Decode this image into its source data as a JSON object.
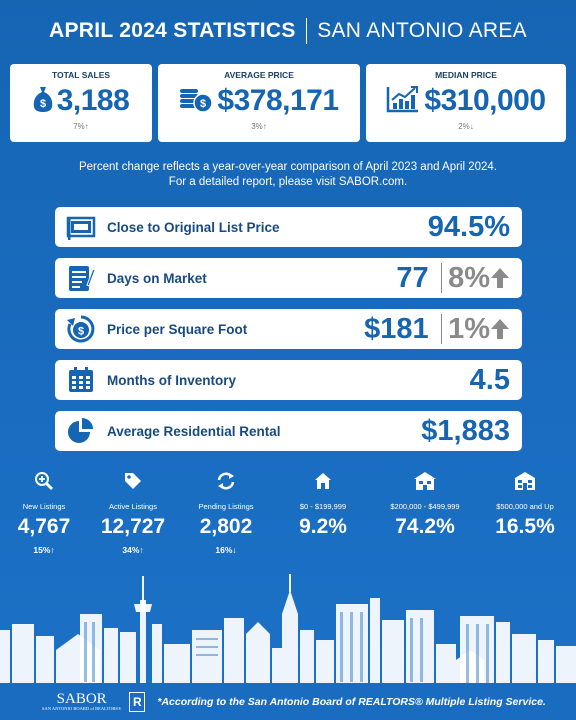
{
  "header": {
    "title": "APRIL 2024 STATISTICS",
    "area": "SAN ANTONIO AREA"
  },
  "top_cards": [
    {
      "label": "TOTAL SALES",
      "value": "3,188",
      "change": "7%↑",
      "icon": "money-bag-icon"
    },
    {
      "label": "AVERAGE PRICE",
      "value": "$378,171",
      "change": "3%↑",
      "icon": "coin-stack-icon"
    },
    {
      "label": "MEDIAN PRICE",
      "value": "$310,000",
      "change": "2%↓",
      "icon": "growth-chart-icon"
    }
  ],
  "note": {
    "line1": "Percent change reflects a year-over-year comparison of April 2023 and April 2024.",
    "line2": "For a detailed report, please visit SABOR.com."
  },
  "bars": [
    {
      "label": "Close to Original List Price",
      "value": "94.5%",
      "change": "",
      "icon": "price-tag-frame-icon"
    },
    {
      "label": "Days on Market",
      "value": "77",
      "change": "8%",
      "direction": "up",
      "icon": "clipboard-pen-icon"
    },
    {
      "label": "Price per Square Foot",
      "value": "$181",
      "change": "1%",
      "direction": "up",
      "icon": "dollar-refresh-icon"
    },
    {
      "label": "Months of Inventory",
      "value": "4.5",
      "change": "",
      "icon": "calendar-icon"
    },
    {
      "label": "Average Residential Rental",
      "value": "$1,883",
      "change": "",
      "icon": "pie-chart-icon"
    }
  ],
  "stats": [
    {
      "label": "New Listings",
      "value": "4,767",
      "change": "15%↑",
      "icon": "magnifier-plus-icon"
    },
    {
      "label": "Active Listings",
      "value": "12,727",
      "change": "34%↑",
      "icon": "tag-icon"
    },
    {
      "label": "Pending Listings",
      "value": "2,802",
      "change": "16%↓",
      "icon": "refresh-icon"
    },
    {
      "label": "$0 - $199,999",
      "value": "9.2%",
      "change": "",
      "icon": "small-house-icon"
    },
    {
      "label": "$200,000 - $499,999",
      "value": "74.2%",
      "change": "",
      "icon": "medium-house-icon"
    },
    {
      "label": "$500,000 and Up",
      "value": "16.5%",
      "change": "",
      "icon": "large-house-icon"
    }
  ],
  "footer": {
    "logo_text": "SABOR",
    "logo_sub": "SAN ANTONIO BOARD of REALTORS®",
    "realtor_mark": "R",
    "realtor_sub": "REALTOR®",
    "note": "*According to the San Antonio Board of REALTORS® Multiple Listing Service."
  },
  "colors": {
    "background": "#1a6cc0",
    "accent": "#1565b3",
    "change_gray": "#8a8a8a"
  }
}
